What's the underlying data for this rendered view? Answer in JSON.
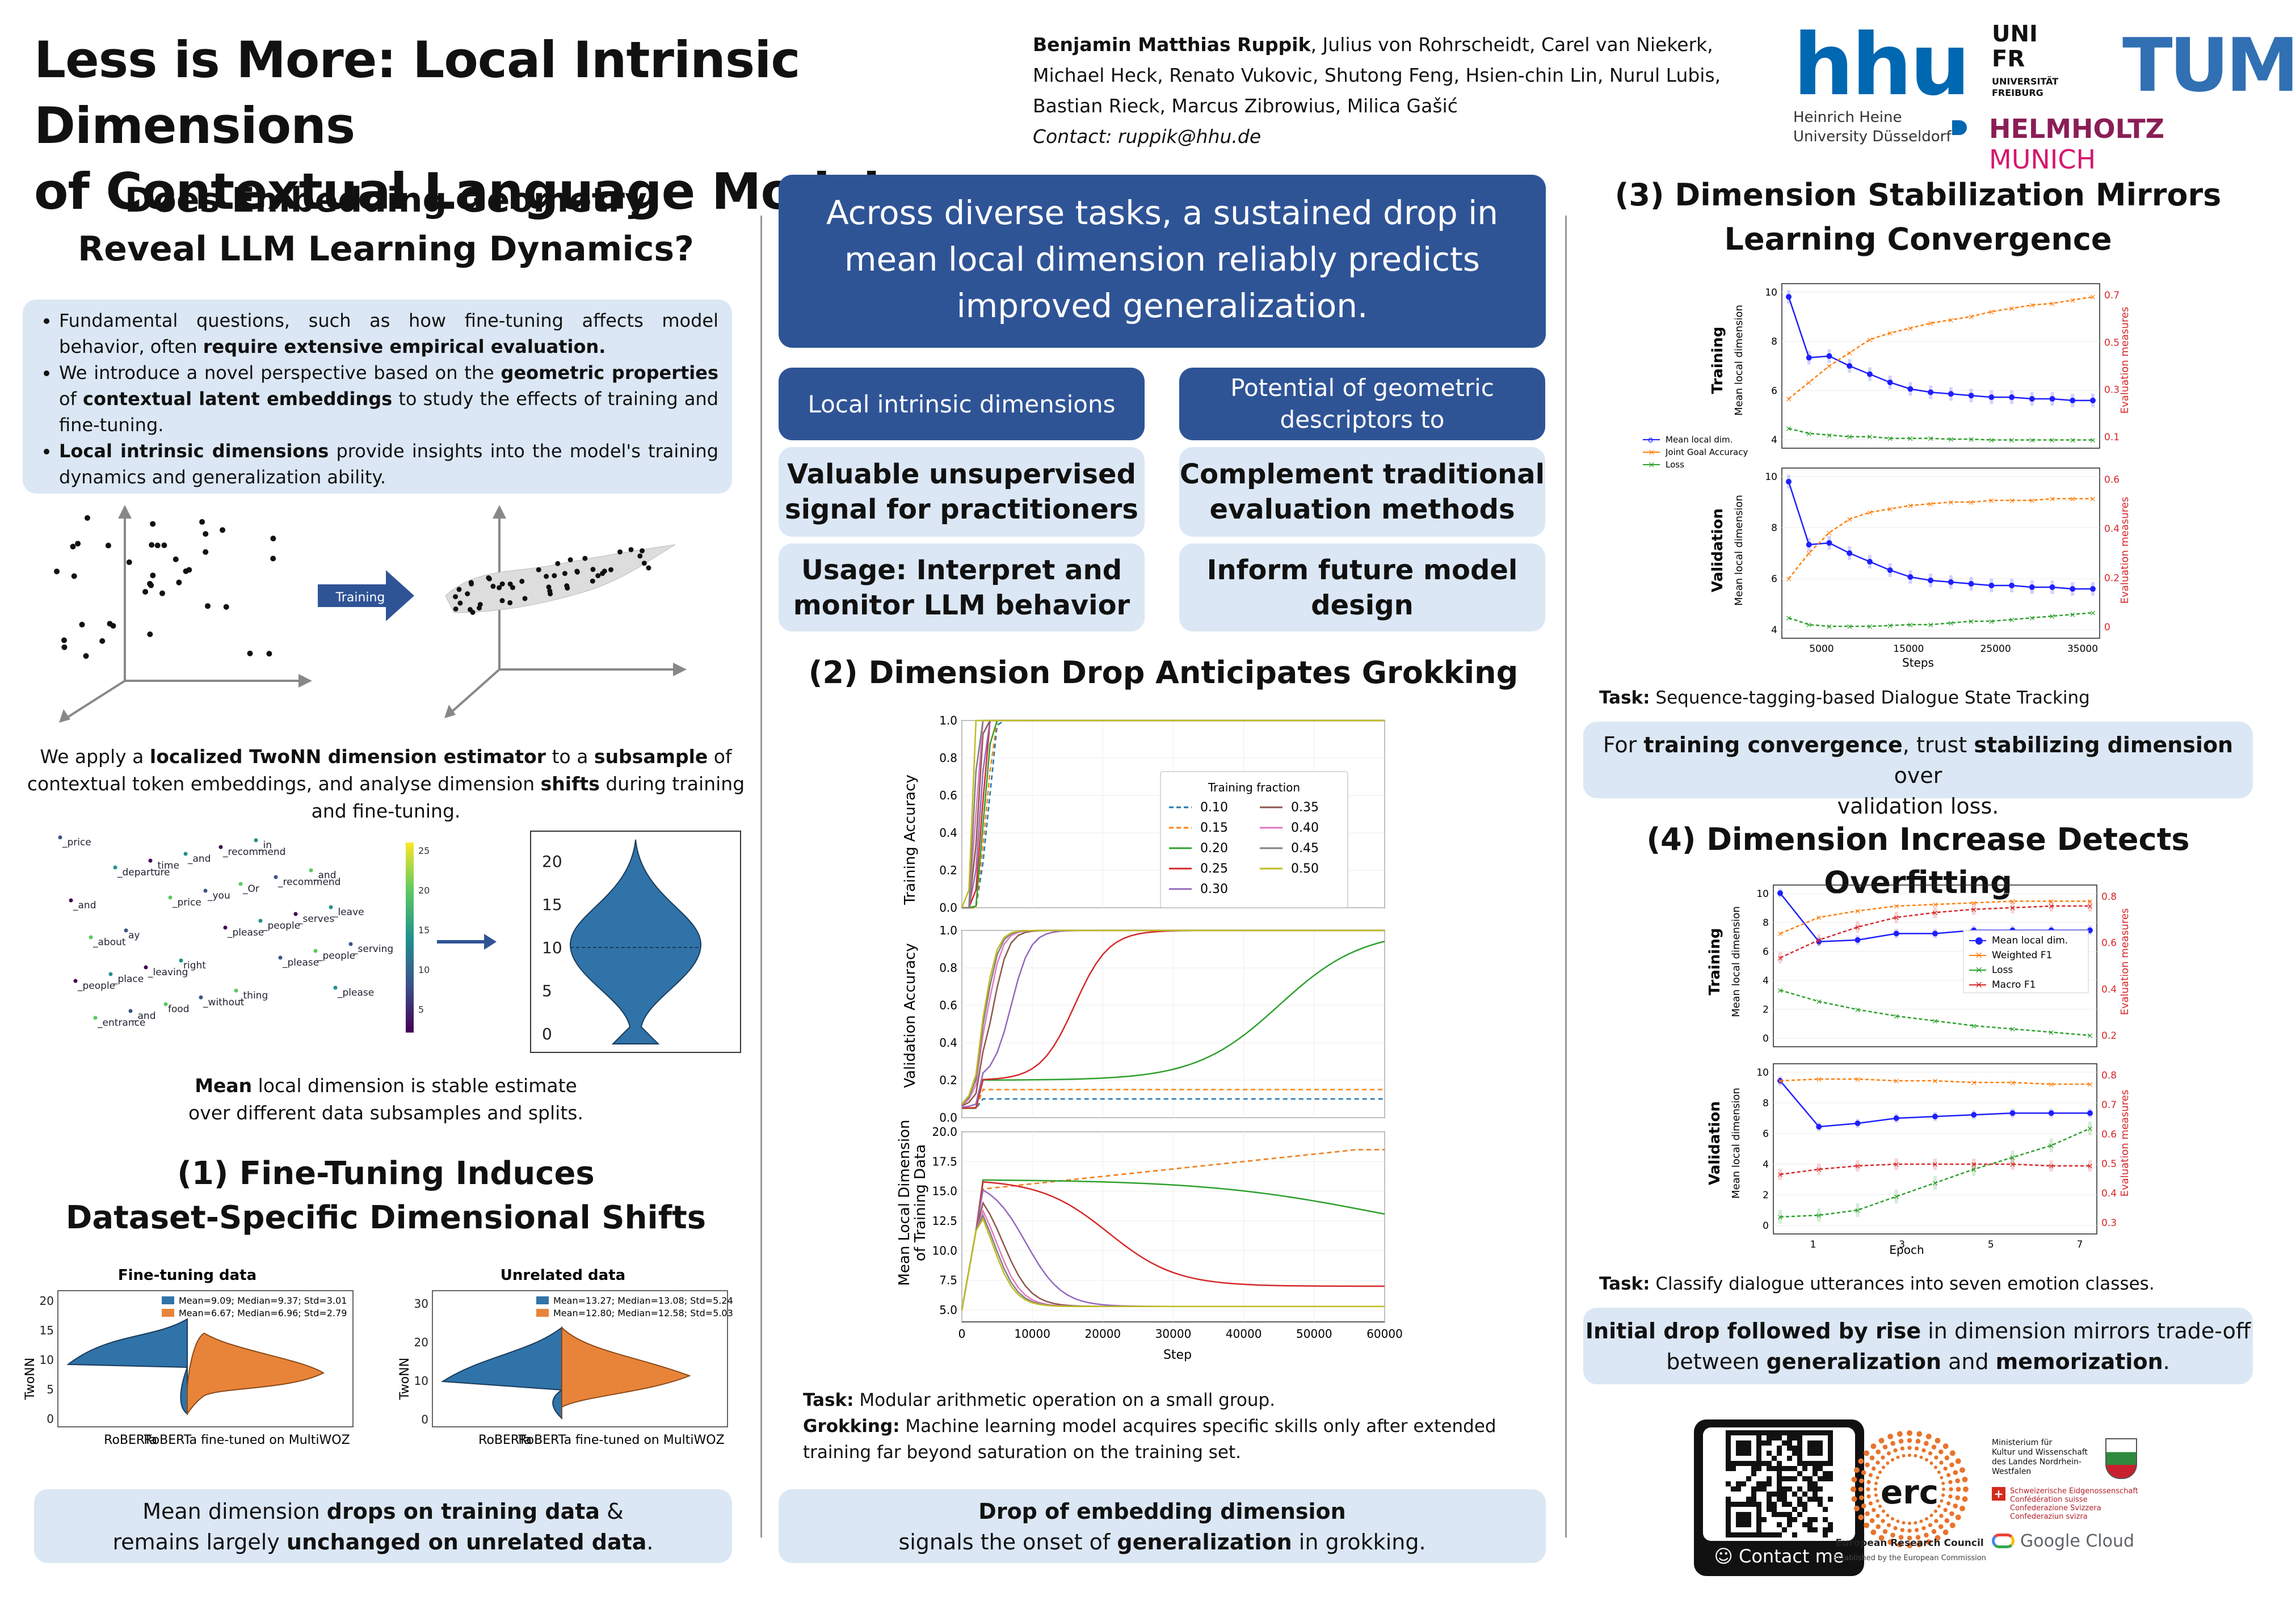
{
  "header": {
    "title_line1": "Less is More: Local Intrinsic Dimensions",
    "title_line2": "of Contextual Language Models",
    "first_author": "Benjamin Matthias Ruppik",
    "authors_rest": ", Julius von Rohrscheidt, Carel van Niekerk, Michael Heck, Renato Vukovic, Shutong Feng, Hsien-chin Lin, Nurul Lubis, Bastian Rieck, Marcus Zibrowius, Milica Gašić",
    "contact": "Contact: ruppik@hhu.de"
  },
  "logos": {
    "hhu": "hhu",
    "hhu_sub1": "Heinrich Heine",
    "hhu_sub2": "University Düsseldorf",
    "ufr1": "UNI",
    "ufr2": "FR",
    "ufr3": "UNIVERSITÄT FREIBURG",
    "tum": "TUM",
    "helm1": "HELMHOLTZ",
    "helm2": "MUNICH"
  },
  "left": {
    "heading1": "Does Embedding Geometry",
    "heading2": "Reveal LLM Learning Dynamics?",
    "b1_pre": "Fundamental questions, such as how fine-tuning affects model behavior, often ",
    "b1_bold": "require extensive empirical evaluation.",
    "b2_pre": "We introduce a novel perspective based on the ",
    "b2_bold1": "geometric properties",
    "b2_mid": " of ",
    "b2_bold2": "contextual latent embeddings",
    "b2_post": " to study the effects of training and fine-tuning.",
    "b3_bold": "Local intrinsic dimensions",
    "b3_post": " provide insights into the model's training dynamics and generalization ability.",
    "training_arrow": "Training",
    "apply_pre": "We apply a ",
    "apply_b1": "localized TwoNN dimension estimator",
    "apply_mid": " to a ",
    "apply_b2": "subsample",
    "apply_mid2": " of contextual token embeddings, and analyse dimension ",
    "apply_b3": "shifts",
    "apply_post": " during training and fine-tuning.",
    "mean_bold": "Mean",
    "mean_l1": " local dimension is stable estimate",
    "mean_l2": "over different data subsamples and splits.",
    "sec1_line1": "(1) Fine-Tuning Induces",
    "sec1_line2": "Dataset-Specific Dimensional Shifts",
    "ft_title": "Fine-tuning data",
    "ur_title": "Unrelated data",
    "ft_leg1": "Mean=9.09; Median=9.37; Std=3.01",
    "ft_leg2": "Mean=6.67; Median=6.96; Std=2.79",
    "ur_leg1": "Mean=13.27; Median=13.08; Std=5.24",
    "ur_leg2": "Mean=12.80; Median=12.58; Std=5.03",
    "twonn": "TwoNN",
    "xl1": "RoBERTa",
    "xl2": "RoBERTa fine-tuned on MultiWOZ",
    "concl_pre": "Mean dimension ",
    "concl_b1": "drops on training data",
    "concl_mid": " &",
    "concl_l2pre": "remains largely ",
    "concl_b2": "unchanged on unrelated data",
    "concl_end": ".",
    "tokens": [
      "_price",
      "_departure",
      "_price",
      "_please",
      "_please",
      "_please",
      "_entrance",
      "_time",
      "_you",
      "_people",
      "_people",
      "_people",
      "_and",
      "_and",
      "_Or",
      "_serves",
      "_serving",
      "_place",
      "food",
      "_recommend",
      "_recommend",
      "_leave",
      "_about",
      "_leaving",
      "_without",
      "_in",
      "_and",
      "_and",
      "ay",
      "right",
      "_thing"
    ],
    "cbar_ticks": [
      "25",
      "20",
      "15",
      "10",
      "5"
    ],
    "violin_ticks": [
      "20",
      "15",
      "10",
      "5",
      "0"
    ]
  },
  "middle": {
    "key1": "Across diverse tasks, a sustained drop in",
    "key2": "mean local dimension reliably predicts",
    "key3": "improved generalization.",
    "g_lid": "Local intrinsic dimensions",
    "g_pot1": "Potential of geometric",
    "g_pot2": "descriptors to",
    "g_v1": "Valuable unsupervised",
    "g_v2": "signal for practitioners",
    "g_c1": "Complement traditional",
    "g_c2": "evaluation methods",
    "g_u1": "Usage: Interpret and",
    "g_u2": "monitor LLM behavior",
    "g_i1": "Inform future model",
    "g_i2": "design",
    "sec2": "(2) Dimension Drop Anticipates Grokking",
    "task_b": "Task:",
    "task": " Modular arithmetic operation on a small group.",
    "grok_b": "Grokking:",
    "grok": " Machine learning model acquires specific skills only after extended training far beyond saturation on the training set.",
    "c1": "Drop of embedding dimension",
    "c2pre": "signals the onset of ",
    "c2b": "generalization",
    "c2post": " in grokking.",
    "ylabel_train": "Training Accuracy",
    "ylabel_val": "Validation Accuracy",
    "ylabel_dim1": "Mean Local Dimension",
    "ylabel_dim2": "of Training Data",
    "xlabel": "Step",
    "legend_title": "Training fraction",
    "legend": [
      "0.10",
      "0.15",
      "0.20",
      "0.25",
      "0.30",
      "0.35",
      "0.40",
      "0.45",
      "0.50"
    ],
    "acc_ticks": [
      "1.0",
      "0.8",
      "0.6",
      "0.4",
      "0.2",
      "0.0"
    ],
    "dim_ticks": [
      "20.0",
      "17.5",
      "15.0",
      "12.5",
      "10.0",
      "7.5",
      "5.0"
    ],
    "x_ticks": [
      "0",
      "10000",
      "20000",
      "30000",
      "40000",
      "50000",
      "60000"
    ]
  },
  "right": {
    "sec3_1": "(3) Dimension Stabilization Mirrors",
    "sec3_2": "Learning Convergence",
    "training": "Training",
    "validation": "Validation",
    "mld": "Mean local dimension",
    "eval": "Evaluation measures",
    "steps": "Steps",
    "leg3": [
      "Mean local dim.",
      "Joint Goal Accuracy",
      "Loss"
    ],
    "x3_ticks": [
      "5000",
      "15000",
      "25000",
      "35000"
    ],
    "y3_left": [
      "10",
      "8",
      "6",
      "4"
    ],
    "y3_rt": [
      "0.7",
      "0.5",
      "0.3",
      "0.1"
    ],
    "y3_rv": [
      "0.6",
      "0.4",
      "0.2",
      "0"
    ],
    "task3_b": "Task:",
    "task3": " Sequence-tagging-based Dialogue State Tracking",
    "c3_pre": "For ",
    "c3_b1": "training convergence",
    "c3_mid": ", trust ",
    "c3_b2": "stabilizing dimension",
    "c3_post": " over",
    "c3_l2": "validation loss.",
    "sec4": "(4) Dimension Increase Detects Overfitting",
    "leg4": [
      "Mean local dim.",
      "Weighted F1",
      "Loss",
      "Macro F1"
    ],
    "epoch": "Epoch",
    "x4_ticks": [
      "1",
      "3",
      "5",
      "7"
    ],
    "y4_left": [
      "10",
      "8",
      "6",
      "4",
      "2",
      "0"
    ],
    "y4_rt": [
      "0.8",
      "0.6",
      "0.4",
      "0.2"
    ],
    "y4_rv": [
      "0.8",
      "0.7",
      "0.6",
      "0.5",
      "0.4",
      "0.3"
    ],
    "task4_b": "Task:",
    "task4": " Classify dialogue utterances into seven emotion classes.",
    "c4_b1": "Initial drop followed by rise",
    "c4_mid": " in dimension mirrors trade-off",
    "c4_l2pre": "between ",
    "c4_b2": "generalization",
    "c4_and": " and ",
    "c4_b3": "memorization",
    "c4_end": ".",
    "contact_me": "Contact me",
    "erc": "erc",
    "erc1": "European Research Council",
    "erc2": "Established by the European Commission",
    "min1": "Ministerium für",
    "min2": "Kultur und Wissenschaft",
    "min3": "des Landes Nordrhein-Westfalen",
    "swiss1": "Schweizerische Eidgenossenschaft",
    "swiss2": "Confédération suisse",
    "swiss3": "Confederazione Svizzera",
    "swiss4": "Confederaziun svizra",
    "google": "Google Cloud"
  },
  "colors": {
    "blue": "#2f5496",
    "light": "#dbe7f4",
    "c10": "#1f77b4",
    "c15": "#ff7f0e",
    "c20": "#2ca02c",
    "c25": "#d62728",
    "c30": "#9467bd",
    "c35": "#8c564b",
    "c40": "#e377c2",
    "c45": "#7f7f7f",
    "c50": "#bcbd22"
  }
}
